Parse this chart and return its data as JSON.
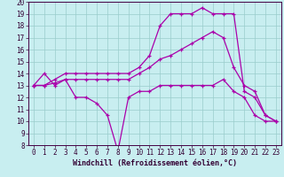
{
  "xlabel": "Windchill (Refroidissement éolien,°C)",
  "xlim": [
    -0.5,
    23.5
  ],
  "ylim": [
    8,
    20
  ],
  "yticks": [
    8,
    9,
    10,
    11,
    12,
    13,
    14,
    15,
    16,
    17,
    18,
    19,
    20
  ],
  "xticks": [
    0,
    1,
    2,
    3,
    4,
    5,
    6,
    7,
    8,
    9,
    10,
    11,
    12,
    13,
    14,
    15,
    16,
    17,
    18,
    19,
    20,
    21,
    22,
    23
  ],
  "bg_color": "#c8eef0",
  "line_color": "#aa00aa",
  "grid_color": "#99cccc",
  "line1_x": [
    0,
    1,
    2,
    3,
    4,
    5,
    6,
    7,
    8,
    9,
    10,
    11,
    12,
    13,
    14,
    15,
    16,
    17,
    18,
    19,
    20,
    21,
    22,
    23
  ],
  "line1_y": [
    13.0,
    14.0,
    13.0,
    13.5,
    12.0,
    12.0,
    11.5,
    10.5,
    7.5,
    12.0,
    12.5,
    12.5,
    13.0,
    13.0,
    13.0,
    13.0,
    13.0,
    13.0,
    13.5,
    12.5,
    12.0,
    10.5,
    10.0,
    10.0
  ],
  "line2_x": [
    0,
    1,
    2,
    3,
    4,
    5,
    6,
    7,
    8,
    9,
    10,
    11,
    12,
    13,
    14,
    15,
    16,
    17,
    18,
    19,
    20,
    21,
    22,
    23
  ],
  "line2_y": [
    13.0,
    13.0,
    13.2,
    13.5,
    13.5,
    13.5,
    13.5,
    13.5,
    13.5,
    13.5,
    14.0,
    14.5,
    15.2,
    15.5,
    16.0,
    16.5,
    17.0,
    17.5,
    17.0,
    14.5,
    13.0,
    12.5,
    10.5,
    10.0
  ],
  "line3_x": [
    0,
    1,
    2,
    3,
    4,
    5,
    6,
    7,
    8,
    9,
    10,
    11,
    12,
    13,
    14,
    15,
    16,
    17,
    18,
    19,
    20,
    21,
    22,
    23
  ],
  "line3_y": [
    13.0,
    13.0,
    13.5,
    14.0,
    14.0,
    14.0,
    14.0,
    14.0,
    14.0,
    14.0,
    14.5,
    15.5,
    18.0,
    19.0,
    19.0,
    19.0,
    19.5,
    19.0,
    19.0,
    19.0,
    12.5,
    12.0,
    10.5,
    10.0
  ],
  "tick_fontsize": 5.5,
  "xlabel_fontsize": 6.0
}
